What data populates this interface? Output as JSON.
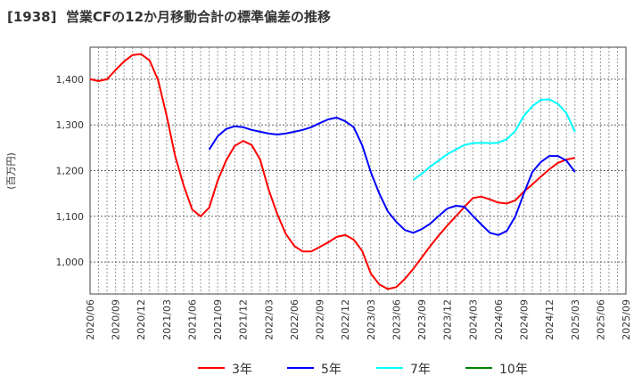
{
  "chart_data": {
    "type": "line",
    "title": "[1938]  営業CFの12か月移動合計の標準偏差の推移",
    "ylabel": "(百万円)",
    "xlabel": "",
    "ylim": [
      930,
      1470
    ],
    "yticks": [
      1000,
      1100,
      1200,
      1300,
      1400
    ],
    "ytick_labels": [
      "1,000",
      "1,100",
      "1,200",
      "1,300",
      "1,400"
    ],
    "xtick_labels": [
      "2020/06",
      "2020/09",
      "2020/12",
      "2021/03",
      "2021/06",
      "2021/09",
      "2021/12",
      "2022/03",
      "2022/06",
      "2022/09",
      "2022/12",
      "2023/03",
      "2023/06",
      "2023/09",
      "2023/12",
      "2024/03",
      "2024/06",
      "2024/09",
      "2024/12",
      "2025/03",
      "2025/06",
      "2025/09"
    ],
    "x_start": "2020/06",
    "x_unit": "month",
    "grid": true,
    "legend_position": "bottom",
    "series": [
      {
        "name": "3年",
        "color": "#ff0000",
        "start_month": 0,
        "values": [
          1400,
          1396,
          1400,
          1420,
          1439,
          1453,
          1455,
          1441,
          1398,
          1320,
          1232,
          1168,
          1115,
          1100,
          1119,
          1178,
          1222,
          1254,
          1265,
          1256,
          1224,
          1158,
          1105,
          1062,
          1035,
          1023,
          1023,
          1033,
          1043,
          1055,
          1059,
          1049,
          1024,
          975,
          951,
          941,
          945,
          963,
          985,
          1010,
          1035,
          1058,
          1080,
          1100,
          1120,
          1140,
          1143,
          1137,
          1130,
          1128,
          1135,
          1154,
          1170,
          1187,
          1203,
          1217,
          1224,
          1228
        ]
      },
      {
        "name": "5年",
        "color": "#0000ff",
        "start_month": 14,
        "values": [
          1246,
          1275,
          1291,
          1297,
          1295,
          1289,
          1285,
          1281,
          1279,
          1281,
          1285,
          1289,
          1295,
          1304,
          1312,
          1316,
          1308,
          1295,
          1255,
          1197,
          1150,
          1111,
          1088,
          1070,
          1064,
          1072,
          1084,
          1101,
          1117,
          1123,
          1121,
          1101,
          1082,
          1064,
          1059,
          1068,
          1100,
          1150,
          1197,
          1219,
          1232,
          1232,
          1222,
          1197
        ]
      },
      {
        "name": "7年",
        "color": "#00ffff",
        "start_month": 38,
        "values": [
          1180,
          1193,
          1209,
          1222,
          1236,
          1246,
          1256,
          1260,
          1261,
          1260,
          1261,
          1269,
          1287,
          1320,
          1341,
          1355,
          1356,
          1346,
          1326,
          1285
        ]
      },
      {
        "name": "10年",
        "color": "#008000",
        "start_month": null,
        "values": []
      }
    ]
  }
}
